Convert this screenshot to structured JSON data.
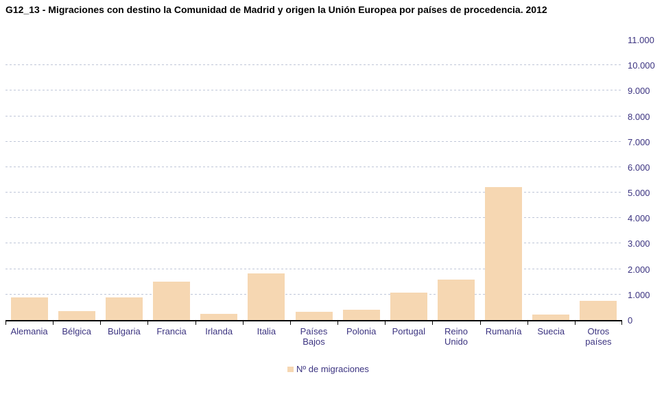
{
  "title": "G12_13 - Migraciones con destino la Comunidad de Madrid y origen la Unión Europea por países de procedencia. 2012",
  "legend": {
    "label": "Nº de migraciones",
    "marker": "square-icon"
  },
  "colors": {
    "bar": "#F6D7B2",
    "gridline": "#BFC6D8",
    "axis_line": "#000000",
    "axis_text": "#3B3380",
    "title_text": "#000000",
    "background": "#FFFFFF"
  },
  "y_axis": {
    "side": "right",
    "ticks": [
      {
        "value": 0,
        "label": "0"
      },
      {
        "value": 1000,
        "label": "1.000"
      },
      {
        "value": 2000,
        "label": "2.000"
      },
      {
        "value": 3000,
        "label": "3.000"
      },
      {
        "value": 4000,
        "label": "4.000"
      },
      {
        "value": 5000,
        "label": "5.000"
      },
      {
        "value": 6000,
        "label": "6.000"
      },
      {
        "value": 7000,
        "label": "7.000"
      },
      {
        "value": 8000,
        "label": "8.000"
      },
      {
        "value": 9000,
        "label": "9.000"
      },
      {
        "value": 10000,
        "label": "10.000"
      },
      {
        "value": 11000,
        "label": "11.000"
      }
    ]
  },
  "chart_data": {
    "type": "bar",
    "title": "G12_13 - Migraciones con destino la Comunidad de Madrid y origen la Unión Europea por países de procedencia. 2012",
    "categories": [
      "Alemania",
      "Bélgica",
      "Bulgaria",
      "Francia",
      "Irlanda",
      "Italia",
      "Países Bajos",
      "Polonia",
      "Portugal",
      "Reino Unido",
      "Rumanía",
      "Suecia",
      "Otros países"
    ],
    "series": [
      {
        "name": "Nº de migraciones",
        "values": [
          890,
          360,
          880,
          1510,
          240,
          1840,
          330,
          390,
          1070,
          1580,
          5210,
          210,
          760
        ]
      }
    ],
    "xlabel": "",
    "ylabel": "",
    "ylim": [
      0,
      11000
    ],
    "y_tick_interval": 1000,
    "grid": true,
    "grid_style": "dashed",
    "legend_position": "bottom",
    "y_axis_side": "right"
  }
}
